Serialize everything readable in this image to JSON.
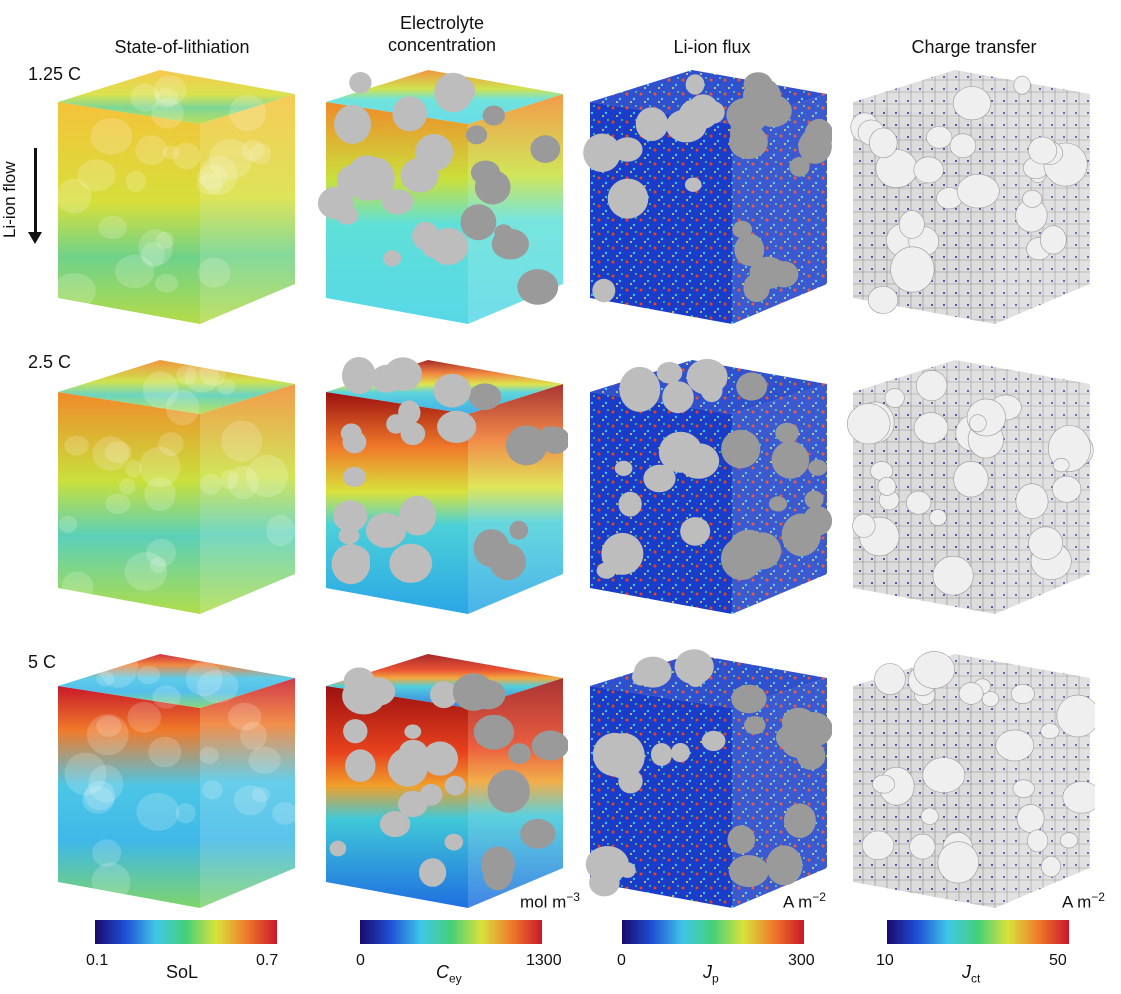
{
  "columns": [
    {
      "title": "State-of-lithiation"
    },
    {
      "title_line1": "Electrolyte",
      "title_line2": "concentration"
    },
    {
      "title": "Li-ion flux"
    },
    {
      "title": "Charge transfer"
    }
  ],
  "rates": [
    "1.25 C",
    "2.5 C",
    "5 C"
  ],
  "flow_label": "Li-ion flow",
  "colorbars": [
    {
      "min": "0.1",
      "max": "0.7",
      "label": "SoL",
      "unit": "",
      "gradient": [
        "#1a0a6e",
        "#1f4fd6",
        "#3fc6e8",
        "#45d07a",
        "#d9e23b",
        "#f07a2a",
        "#c8182a"
      ]
    },
    {
      "min": "0",
      "max": "1300",
      "label_main": "C",
      "label_sub": "ey",
      "unit_main": "mol m",
      "unit_sup": "−3",
      "gradient": [
        "#1a0a6e",
        "#1f4fd6",
        "#3fc6e8",
        "#45d07a",
        "#d9e23b",
        "#f07a2a",
        "#c8182a"
      ]
    },
    {
      "min": "0",
      "max": "300",
      "label_main": "J",
      "label_sub": "p",
      "unit_main": "A m",
      "unit_sup": "−2",
      "gradient": [
        "#1a0a6e",
        "#1f4fd6",
        "#3fc6e8",
        "#45d07a",
        "#d9e23b",
        "#f07a2a",
        "#c8182a"
      ]
    },
    {
      "min": "10",
      "max": "50",
      "label_main": "J",
      "label_sub": "ct",
      "unit_main": "A m",
      "unit_sup": "−2",
      "gradient": [
        "#1a0a6e",
        "#1f4fd6",
        "#3fc6e8",
        "#45d07a",
        "#d9e23b",
        "#f07a2a",
        "#c8182a"
      ]
    }
  ]
}
